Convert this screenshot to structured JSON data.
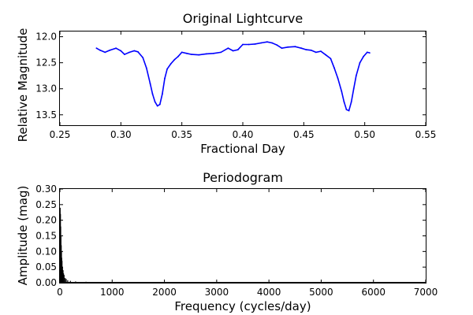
{
  "chart_data": [
    {
      "type": "line",
      "title": "Original Lightcurve",
      "xlabel": "Fractional Day",
      "ylabel": "Relative Magnitude",
      "xlim": [
        0.25,
        0.55
      ],
      "ylim": [
        13.7,
        11.9
      ],
      "y_inverted": true,
      "grid": false,
      "color": "#0000ff",
      "x_ticks": [
        "0.25",
        "0.30",
        "0.35",
        "0.40",
        "0.45",
        "0.50",
        "0.55"
      ],
      "y_ticks": [
        "12.0",
        "12.5",
        "13.0",
        "13.5"
      ],
      "series": [
        {
          "x": [
            0.28,
            0.283,
            0.287,
            0.291,
            0.296,
            0.3,
            0.303,
            0.307,
            0.311,
            0.314,
            0.318,
            0.321,
            0.324,
            0.326,
            0.328,
            0.33,
            0.332,
            0.334,
            0.336,
            0.338,
            0.341,
            0.344,
            0.347,
            0.35,
            0.354,
            0.358,
            0.364,
            0.37,
            0.376,
            0.382,
            0.388,
            0.392,
            0.396,
            0.4,
            0.405,
            0.41,
            0.415,
            0.42,
            0.424,
            0.428,
            0.432,
            0.437,
            0.443,
            0.448,
            0.452,
            0.456,
            0.46,
            0.464,
            0.468,
            0.472,
            0.475,
            0.478,
            0.481,
            0.483,
            0.485,
            0.487,
            0.489,
            0.491,
            0.493,
            0.496,
            0.499,
            0.502,
            0.504
          ],
          "y": [
            12.22,
            12.26,
            12.3,
            12.26,
            12.22,
            12.27,
            12.34,
            12.3,
            12.27,
            12.29,
            12.4,
            12.6,
            12.9,
            13.1,
            13.25,
            13.33,
            13.3,
            13.1,
            12.8,
            12.62,
            12.52,
            12.44,
            12.38,
            12.3,
            12.32,
            12.34,
            12.35,
            12.33,
            12.32,
            12.3,
            12.22,
            12.27,
            12.25,
            12.15,
            12.15,
            12.14,
            12.12,
            12.1,
            12.12,
            12.16,
            12.22,
            12.2,
            12.19,
            12.22,
            12.25,
            12.26,
            12.3,
            12.28,
            12.35,
            12.42,
            12.6,
            12.8,
            13.05,
            13.25,
            13.4,
            13.42,
            13.25,
            13.0,
            12.75,
            12.5,
            12.38,
            12.3,
            12.31
          ]
        }
      ]
    },
    {
      "type": "bar",
      "title": "Periodogram",
      "xlabel": "Frequency (cycles/day)",
      "ylabel": "Amplitude (mag)",
      "xlim": [
        0,
        7000
      ],
      "ylim": [
        0,
        0.3
      ],
      "grid": false,
      "color": "#000000",
      "x_ticks": [
        "0",
        "1000",
        "2000",
        "3000",
        "4000",
        "5000",
        "6000",
        "7000"
      ],
      "y_ticks": [
        "0.00",
        "0.05",
        "0.10",
        "0.15",
        "0.20",
        "0.25",
        "0.30"
      ],
      "series": [
        {
          "x": [
            5,
            10,
            15,
            20,
            25,
            30,
            35,
            40,
            50,
            60,
            70,
            80,
            100,
            120,
            150,
            200,
            300,
            500,
            1000,
            2000,
            3000,
            4000,
            5000,
            6000,
            7000
          ],
          "values": [
            0.24,
            0.22,
            0.18,
            0.15,
            0.12,
            0.1,
            0.08,
            0.07,
            0.05,
            0.04,
            0.03,
            0.025,
            0.015,
            0.012,
            0.008,
            0.006,
            0.004,
            0.003,
            0.002,
            0.002,
            0.001,
            0.001,
            0.001,
            0.001,
            0.001
          ]
        }
      ]
    }
  ]
}
